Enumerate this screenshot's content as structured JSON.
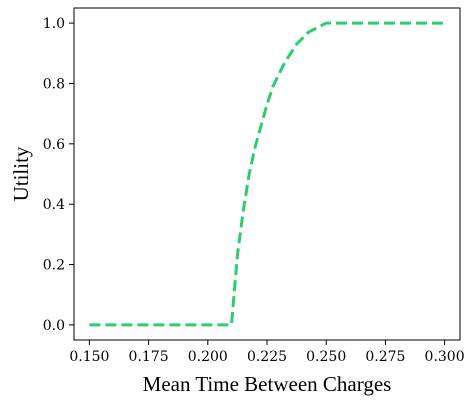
{
  "chart_data": {
    "type": "line",
    "title": "",
    "xlabel": "Mean Time Between Charges",
    "ylabel": "Utility",
    "xlim": [
      0.1435,
      0.3065
    ],
    "ylim": [
      -0.05,
      1.05
    ],
    "xticks": [
      0.15,
      0.175,
      0.2,
      0.225,
      0.25,
      0.275,
      0.3
    ],
    "xtick_labels": [
      "0.150",
      "0.175",
      "0.200",
      "0.225",
      "0.250",
      "0.275",
      "0.300"
    ],
    "yticks": [
      0.0,
      0.2,
      0.4,
      0.6,
      0.8,
      1.0
    ],
    "ytick_labels": [
      "0.0",
      "0.2",
      "0.4",
      "0.6",
      "0.8",
      "1.0"
    ],
    "grid": false,
    "legend": "none",
    "series": [
      {
        "color": "#2ecc71",
        "line_style": "dashed",
        "x": [
          0.15,
          0.175,
          0.2,
          0.21,
          0.2125,
          0.215,
          0.2175,
          0.22,
          0.2225,
          0.225,
          0.2275,
          0.23,
          0.2325,
          0.235,
          0.2375,
          0.24,
          0.2425,
          0.245,
          0.2475,
          0.25,
          0.275,
          0.3
        ],
        "y": [
          0.0,
          0.0,
          0.0,
          0.0,
          0.23,
          0.38,
          0.5,
          0.59,
          0.66,
          0.73,
          0.79,
          0.83,
          0.87,
          0.9,
          0.93,
          0.95,
          0.97,
          0.98,
          0.99,
          1.0,
          1.0,
          1.0
        ]
      }
    ]
  }
}
